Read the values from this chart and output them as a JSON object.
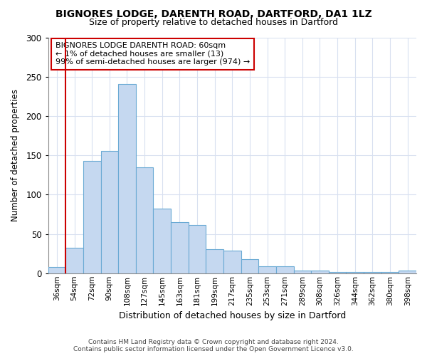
{
  "title1": "BIGNORES LODGE, DARENTH ROAD, DARTFORD, DA1 1LZ",
  "title2": "Size of property relative to detached houses in Dartford",
  "xlabel": "Distribution of detached houses by size in Dartford",
  "ylabel": "Number of detached properties",
  "footer1": "Contains HM Land Registry data © Crown copyright and database right 2024.",
  "footer2": "Contains public sector information licensed under the Open Government Licence v3.0.",
  "annotation_title": "BIGNORES LODGE DARENTH ROAD: 60sqm",
  "annotation_line1": "← 1% of detached houses are smaller (13)",
  "annotation_line2": "99% of semi-detached houses are larger (974) →",
  "bar_color": "#c5d8f0",
  "bar_edge_color": "#6aaad4",
  "vline_color": "#cc0000",
  "vline_x": 1,
  "categories": [
    "36sqm",
    "54sqm",
    "72sqm",
    "90sqm",
    "108sqm",
    "127sqm",
    "145sqm",
    "163sqm",
    "181sqm",
    "199sqm",
    "217sqm",
    "235sqm",
    "253sqm",
    "271sqm",
    "289sqm",
    "308sqm",
    "326sqm",
    "344sqm",
    "362sqm",
    "380sqm",
    "398sqm"
  ],
  "values": [
    8,
    32,
    143,
    156,
    241,
    135,
    82,
    65,
    61,
    31,
    29,
    18,
    9,
    9,
    3,
    3,
    2,
    2,
    2,
    2,
    3
  ],
  "ylim": [
    0,
    300
  ],
  "yticks": [
    0,
    50,
    100,
    150,
    200,
    250,
    300
  ],
  "background_color": "#ffffff",
  "grid_color": "#d8e0f0",
  "annotation_box_color": "#ffffff",
  "annotation_box_edge": "#cc0000",
  "title1_fontsize": 10,
  "title2_fontsize": 9
}
